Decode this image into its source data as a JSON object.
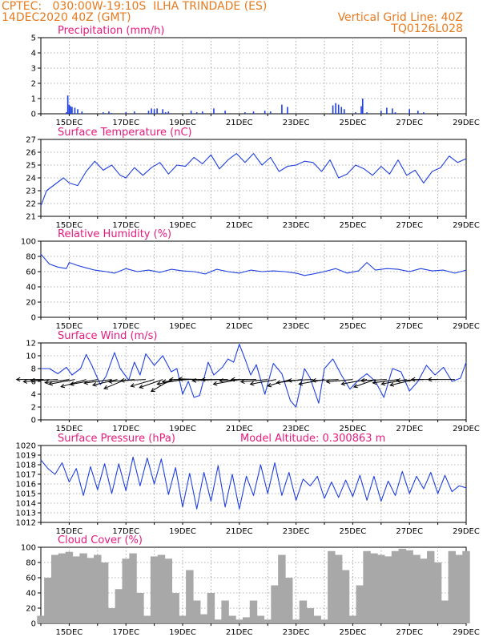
{
  "header": {
    "line1_left": "CPTEC:   030:00W-19:10S  ILHA TRINDADE (ES)",
    "line2_left": "14DEC2020 40Z (GMT)",
    "line2_right": "Vertical Grid Line: 40Z",
    "line3_right": "TQ0126L028"
  },
  "colors": {
    "header": "#e87a1e",
    "title": "#e8197d",
    "series": "#1f3fe0",
    "bars": "#1f3fe0",
    "cloud": "#a8a8a8",
    "grid": "#9a9a9a"
  },
  "chart_data": [
    {
      "type": "bar",
      "title": "Precipitation (mm/h)",
      "ylim": [
        0,
        5
      ],
      "y_ticks": [
        "0",
        "1",
        "2",
        "3",
        "4",
        "5"
      ],
      "x_ticks": [
        "15DEC",
        "17DEC",
        "19DEC",
        "21DEC",
        "23DEC",
        "25DEC",
        "27DEC",
        "29DEC"
      ],
      "x_range_days": [
        14,
        29
      ],
      "x": [
        14.9,
        14.95,
        15.0,
        15.05,
        15.1,
        15.2,
        15.3,
        15.45,
        16.2,
        16.4,
        16.5,
        17.0,
        17.3,
        17.8,
        17.9,
        18.0,
        18.1,
        18.3,
        18.4,
        18.5,
        19.3,
        19.5,
        19.7,
        20.1,
        20.5,
        21.2,
        21.5,
        21.9,
        22.1,
        22.5,
        22.7,
        24.3,
        24.4,
        24.5,
        24.6,
        24.7,
        25.1,
        25.3,
        25.35,
        25.5,
        26.0,
        26.2,
        26.4,
        26.5,
        27.0,
        27.3,
        27.5
      ],
      "values": [
        0.1,
        1.2,
        0.6,
        0.5,
        0.45,
        0.4,
        0.3,
        0.15,
        0.1,
        0.15,
        0.05,
        0.1,
        0.15,
        0.2,
        0.35,
        0.3,
        0.35,
        0.3,
        0.1,
        0.15,
        0.2,
        0.1,
        0.15,
        0.35,
        0.2,
        0.1,
        0.15,
        0.2,
        0.15,
        0.6,
        0.45,
        0.55,
        0.7,
        0.6,
        0.45,
        0.3,
        0.1,
        0.5,
        1.0,
        0.1,
        0.2,
        0.4,
        0.35,
        0.1,
        0.3,
        0.2,
        0.1
      ]
    },
    {
      "type": "line",
      "title": "Surface Temperature (nC)",
      "ylim": [
        21,
        27
      ],
      "y_ticks": [
        "21",
        "22",
        "23",
        "24",
        "25",
        "26",
        "27"
      ],
      "x_ticks": [
        "15DEC",
        "17DEC",
        "19DEC",
        "21DEC",
        "23DEC",
        "25DEC",
        "27DEC",
        "29DEC"
      ],
      "x": [
        14.0,
        14.2,
        14.5,
        14.8,
        15.0,
        15.3,
        15.6,
        15.9,
        16.2,
        16.5,
        16.8,
        17.0,
        17.3,
        17.6,
        17.9,
        18.2,
        18.5,
        18.8,
        19.1,
        19.4,
        19.7,
        20.0,
        20.3,
        20.6,
        20.9,
        21.2,
        21.5,
        21.8,
        22.1,
        22.4,
        22.7,
        23.0,
        23.3,
        23.6,
        23.9,
        24.2,
        24.5,
        24.8,
        25.1,
        25.4,
        25.7,
        26.0,
        26.3,
        26.6,
        26.9,
        27.2,
        27.5,
        27.8,
        28.1,
        28.4,
        28.7,
        29.0
      ],
      "series": [
        {
          "values": [
            21.8,
            23.0,
            23.5,
            24.0,
            23.6,
            23.4,
            24.5,
            25.3,
            24.6,
            25.0,
            24.2,
            24.0,
            24.8,
            24.2,
            24.8,
            25.2,
            24.3,
            25.0,
            24.9,
            25.6,
            25.1,
            25.8,
            24.7,
            25.4,
            25.9,
            25.2,
            25.9,
            25.0,
            25.6,
            24.5,
            24.9,
            25.0,
            25.3,
            25.2,
            24.5,
            25.4,
            24.0,
            24.3,
            25.0,
            24.7,
            24.2,
            24.9,
            24.3,
            25.4,
            24.2,
            24.6,
            23.6,
            24.5,
            24.8,
            25.7,
            25.2,
            25.5
          ]
        }
      ]
    },
    {
      "type": "line",
      "title": "Relative Humidity (%)",
      "ylim": [
        0,
        100
      ],
      "y_ticks": [
        "0",
        "20",
        "40",
        "60",
        "80",
        "100"
      ],
      "x_ticks": [
        "15DEC",
        "17DEC",
        "19DEC",
        "21DEC",
        "23DEC",
        "25DEC",
        "27DEC",
        "29DEC"
      ],
      "x": [
        14.0,
        14.3,
        14.6,
        14.9,
        15.0,
        15.3,
        15.6,
        15.9,
        16.3,
        16.6,
        17.0,
        17.4,
        17.8,
        18.2,
        18.6,
        19.0,
        19.4,
        19.8,
        20.2,
        20.6,
        21.0,
        21.4,
        21.8,
        22.2,
        22.6,
        23.0,
        23.3,
        23.6,
        24.0,
        24.4,
        24.8,
        25.2,
        25.5,
        25.8,
        26.2,
        26.6,
        27.0,
        27.4,
        27.8,
        28.2,
        28.6,
        29.0
      ],
      "series": [
        {
          "values": [
            83,
            70,
            66,
            64,
            72,
            68,
            65,
            62,
            60,
            58,
            64,
            60,
            62,
            59,
            63,
            61,
            60,
            57,
            63,
            60,
            58,
            62,
            60,
            61,
            60,
            58,
            55,
            57,
            60,
            64,
            58,
            61,
            72,
            62,
            64,
            63,
            60,
            64,
            61,
            62,
            58,
            62
          ]
        }
      ]
    },
    {
      "type": "line",
      "title": "Surface Wind (m/s)",
      "ylim": [
        0,
        12
      ],
      "y_ticks": [
        "0",
        "2",
        "4",
        "6",
        "8",
        "10",
        "12"
      ],
      "x_ticks": [
        "15DEC",
        "17DEC",
        "19DEC",
        "21DEC",
        "23DEC",
        "25DEC",
        "27DEC",
        "29DEC"
      ],
      "x": [
        14.0,
        14.3,
        14.6,
        14.9,
        15.1,
        15.4,
        15.6,
        15.8,
        16.1,
        16.3,
        16.6,
        16.8,
        17.1,
        17.3,
        17.5,
        17.7,
        18.0,
        18.3,
        18.6,
        18.8,
        19.0,
        19.2,
        19.4,
        19.6,
        19.9,
        20.1,
        20.4,
        20.6,
        20.8,
        21.0,
        21.2,
        21.4,
        21.6,
        21.9,
        22.2,
        22.5,
        22.8,
        23.0,
        23.3,
        23.5,
        23.8,
        24.0,
        24.3,
        24.6,
        24.9,
        25.2,
        25.5,
        25.8,
        26.1,
        26.4,
        26.7,
        27.0,
        27.3,
        27.6,
        27.9,
        28.2,
        28.5,
        28.8,
        29.0
      ],
      "series": [
        {
          "values": [
            8.0,
            8.0,
            7.2,
            8.2,
            7.0,
            8.0,
            10.2,
            8.5,
            5.5,
            6.8,
            10.5,
            8.0,
            6.2,
            9.0,
            7.0,
            10.3,
            8.5,
            10.0,
            7.5,
            8.0,
            4.0,
            6.0,
            3.5,
            3.8,
            9.0,
            7.0,
            8.2,
            9.5,
            9.0,
            11.8,
            9.5,
            7.0,
            8.6,
            4.0,
            8.8,
            7.2,
            3.0,
            2.0,
            8.0,
            6.5,
            2.6,
            8.0,
            9.5,
            7.0,
            4.8,
            6.2,
            7.2,
            6.0,
            3.5,
            8.0,
            7.5,
            4.5,
            6.0,
            8.5,
            7.0,
            8.2,
            6.0,
            6.5,
            9.0
          ]
        }
      ],
      "wind_arrows": {
        "x": [
          14.1,
          14.3,
          14.6,
          15.0,
          15.2,
          15.6,
          16.0,
          16.5,
          16.7,
          17.0,
          17.3,
          17.7,
          18.0,
          18.3,
          18.6,
          19.0,
          19.2,
          19.5,
          19.8,
          20.3,
          20.6,
          21.0,
          21.3,
          21.6,
          22.0,
          22.3,
          22.8,
          23.2,
          23.6,
          24.0,
          24.5,
          25.0,
          25.5,
          25.8,
          26.2,
          26.6,
          26.9,
          27.2,
          27.5,
          28.0,
          28.6
        ],
        "speed": [
          6.5,
          6.3,
          6.5,
          6.0,
          6.6,
          7.0,
          7.0,
          6.8,
          6.5,
          6.8,
          6.3,
          6.0,
          6.5,
          6.8,
          7.5,
          6.5,
          6.3,
          6.5,
          6.4,
          6.5,
          6.3,
          6.6,
          6.8,
          6.0,
          6.5,
          6.6,
          6.3,
          6.2,
          6.0,
          6.5,
          6.3,
          6.4,
          6.5,
          6.3,
          6.2,
          6.3,
          6.4,
          6.6,
          6.5,
          6.3,
          6.4
        ],
        "dir_deg": [
          180,
          190,
          185,
          195,
          200,
          210,
          200,
          195,
          205,
          220,
          190,
          185,
          210,
          215,
          230,
          200,
          190,
          180,
          175,
          185,
          180,
          200,
          185,
          180,
          190,
          200,
          210,
          195,
          185,
          200,
          185,
          190,
          200,
          215,
          185,
          195,
          200,
          205,
          185,
          180,
          180
        ]
      }
    },
    {
      "type": "line",
      "title": "Surface Pressure (hPa)",
      "annotation": "Model Altitude: 0.300863 m",
      "ylim": [
        1012,
        1020
      ],
      "y_ticks": [
        "1012",
        "1013",
        "1014",
        "1015",
        "1016",
        "1017",
        "1018",
        "1019",
        "1020"
      ],
      "x_ticks": [
        "15DEC",
        "17DEC",
        "19DEC",
        "21DEC",
        "23DEC",
        "25DEC",
        "27DEC",
        "29DEC"
      ],
      "x": [
        14.0,
        14.25,
        14.5,
        14.75,
        15.0,
        15.25,
        15.5,
        15.75,
        16.0,
        16.25,
        16.5,
        16.75,
        17.0,
        17.25,
        17.5,
        17.75,
        18.0,
        18.25,
        18.5,
        18.75,
        19.0,
        19.25,
        19.5,
        19.75,
        20.0,
        20.25,
        20.5,
        20.75,
        21.0,
        21.25,
        21.5,
        21.75,
        22.0,
        22.25,
        22.5,
        22.75,
        23.0,
        23.25,
        23.5,
        23.75,
        24.0,
        24.25,
        24.5,
        24.75,
        25.0,
        25.25,
        25.5,
        25.75,
        26.0,
        26.25,
        26.5,
        26.75,
        27.0,
        27.25,
        27.5,
        27.75,
        28.0,
        28.25,
        28.5,
        28.75,
        29.0
      ],
      "series": [
        {
          "values": [
            1018.5,
            1017.6,
            1017.0,
            1018.2,
            1016.2,
            1017.6,
            1014.8,
            1017.8,
            1015.4,
            1018.1,
            1015.0,
            1018.1,
            1015.3,
            1018.8,
            1015.8,
            1018.7,
            1016.0,
            1018.6,
            1014.9,
            1017.7,
            1013.6,
            1017.1,
            1013.4,
            1017.2,
            1014.2,
            1017.9,
            1013.6,
            1017.0,
            1013.4,
            1016.8,
            1014.8,
            1018.0,
            1015.0,
            1018.2,
            1014.8,
            1017.2,
            1014.3,
            1016.5,
            1015.8,
            1016.8,
            1014.5,
            1016.2,
            1014.6,
            1016.4,
            1014.7,
            1016.9,
            1014.3,
            1016.8,
            1014.2,
            1016.3,
            1014.8,
            1017.3,
            1015.0,
            1016.8,
            1015.5,
            1017.2,
            1015.0,
            1016.9,
            1015.2,
            1015.8,
            1015.6
          ]
        }
      ]
    },
    {
      "type": "bar",
      "title": "Cloud Cover (%)",
      "ylim": [
        0,
        100
      ],
      "y_ticks": [
        "0",
        "20",
        "40",
        "60",
        "80",
        "100"
      ],
      "x_ticks": [
        "15DEC",
        "17DEC",
        "19DEC",
        "21DEC",
        "23DEC",
        "25DEC",
        "27DEC",
        "29DEC"
      ],
      "x": [
        14.0,
        14.25,
        14.5,
        14.75,
        15.0,
        15.25,
        15.5,
        15.75,
        16.0,
        16.25,
        16.5,
        16.75,
        17.0,
        17.25,
        17.5,
        17.75,
        18.0,
        18.25,
        18.5,
        18.75,
        19.0,
        19.25,
        19.5,
        19.75,
        20.0,
        20.25,
        20.5,
        20.75,
        21.0,
        21.25,
        21.5,
        21.75,
        22.0,
        22.25,
        22.5,
        22.75,
        23.0,
        23.25,
        23.5,
        23.75,
        24.0,
        24.25,
        24.5,
        24.75,
        25.0,
        25.25,
        25.5,
        25.75,
        26.0,
        26.25,
        26.5,
        26.75,
        27.0,
        27.25,
        27.5,
        27.75,
        28.0,
        28.25,
        28.5,
        28.75,
        29.0
      ],
      "values": [
        10,
        60,
        90,
        92,
        94,
        88,
        92,
        86,
        90,
        80,
        20,
        45,
        85,
        92,
        40,
        10,
        88,
        90,
        85,
        40,
        10,
        70,
        30,
        12,
        40,
        5,
        30,
        10,
        5,
        8,
        30,
        10,
        5,
        50,
        90,
        60,
        5,
        30,
        20,
        10,
        5,
        95,
        90,
        70,
        10,
        50,
        95,
        92,
        90,
        88,
        95,
        98,
        96,
        90,
        85,
        95,
        80,
        30,
        95,
        90,
        95
      ]
    }
  ]
}
